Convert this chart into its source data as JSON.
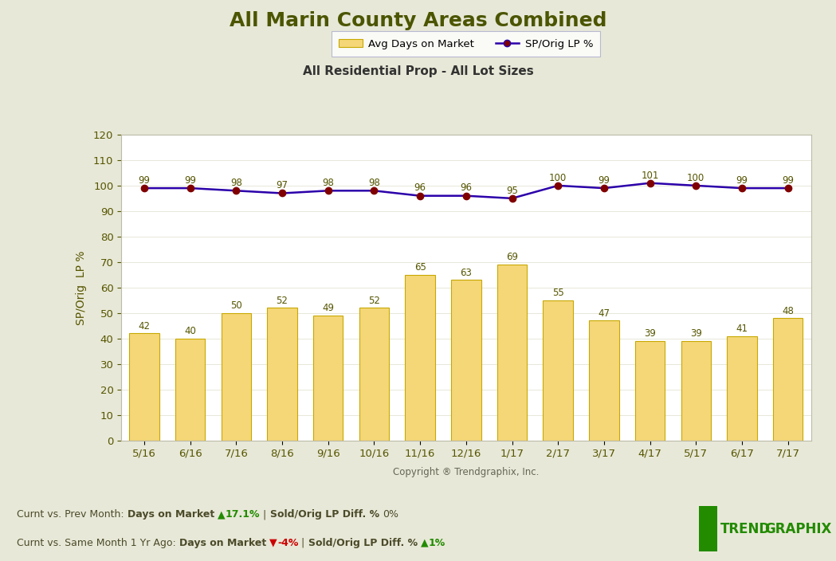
{
  "title": "All Marin County Areas Combined",
  "subtitle": "All Residential Prop - All Lot Sizes",
  "xlabel": "Copyright ® Trendgraphix, Inc.",
  "ylabel": "SP/Orig  LP %",
  "categories": [
    "5/16",
    "6/16",
    "7/16",
    "8/16",
    "9/16",
    "10/16",
    "11/16",
    "12/16",
    "1/17",
    "2/17",
    "3/17",
    "4/17",
    "5/17",
    "6/17",
    "7/17"
  ],
  "bar_values": [
    42,
    40,
    50,
    52,
    49,
    52,
    65,
    63,
    69,
    55,
    47,
    39,
    39,
    41,
    48
  ],
  "line_values": [
    99,
    99,
    98,
    97,
    98,
    98,
    96,
    96,
    95,
    100,
    99,
    101,
    100,
    99,
    99
  ],
  "bar_color": "#F5D778",
  "bar_edge_color": "#C8A800",
  "line_color": "#2B00AA",
  "marker_face": "#800000",
  "marker_edge": "#800000",
  "ylim": [
    0,
    120
  ],
  "yticks": [
    0,
    10,
    20,
    30,
    40,
    50,
    60,
    70,
    80,
    90,
    100,
    110,
    120
  ],
  "title_fontsize": 18,
  "subtitle_fontsize": 11,
  "tick_fontsize": 9.5,
  "label_fontsize": 10,
  "annot_fontsize": 8.5,
  "header_bg": "#DDDDB8",
  "footer_bg": "#E8E8D0",
  "plot_bg": "#FFFFFF",
  "outer_bg": "#E8E8D8",
  "title_color": "#4B5500",
  "subtitle_color": "#333333",
  "tick_color": "#555500",
  "annot_color": "#555500",
  "legend_bar_label": "Avg Days on Market",
  "legend_line_label": "SP/Orig LP %"
}
